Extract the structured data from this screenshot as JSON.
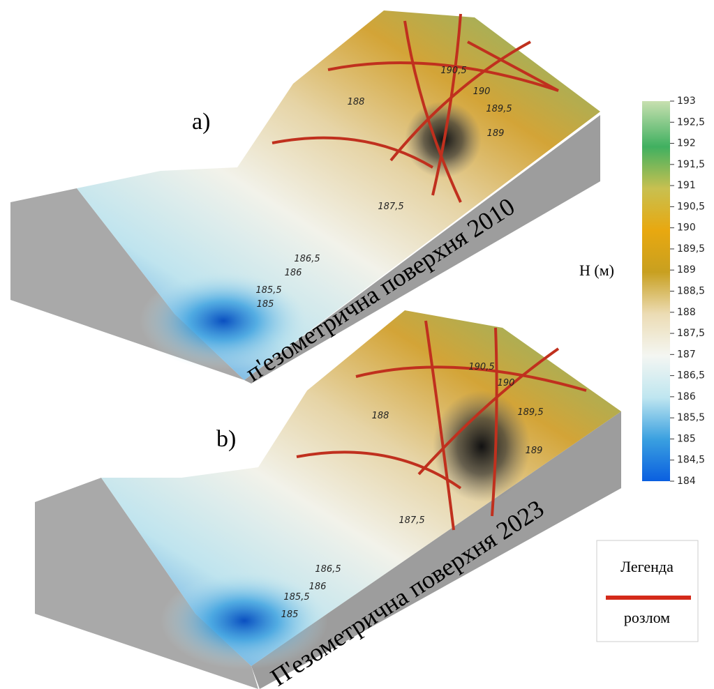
{
  "panels": [
    {
      "label": "a)",
      "caption": "п'езометрична поверхня 2010",
      "contours": [
        "190,5",
        "190",
        "189,5",
        "189",
        "188",
        "187,5",
        "186,5",
        "186",
        "185,5",
        "185"
      ]
    },
    {
      "label": "b)",
      "caption": "П'езометрична поверхня 2023",
      "contours": [
        "190,5",
        "190",
        "189,5",
        "189",
        "188",
        "187,5",
        "186,5",
        "186",
        "185,5",
        "185"
      ]
    }
  ],
  "colorbar": {
    "title": "H (м)",
    "range": [
      184,
      193
    ],
    "ticks": [
      193,
      {
        "value": 192.5,
        "label": "192,5"
      },
      192,
      {
        "value": 191.5,
        "label": "191,5"
      },
      191,
      {
        "value": 190.5,
        "label": "190,5"
      },
      190,
      {
        "value": 189.5,
        "label": "189,5"
      },
      189,
      {
        "value": 188.5,
        "label": "188,5"
      },
      188,
      {
        "value": 187.5,
        "label": "187,5"
      },
      187,
      {
        "value": 186.5,
        "label": "186,5"
      },
      186,
      {
        "value": 185.5,
        "label": "185,5"
      },
      185,
      {
        "value": 184.5,
        "label": "184,5"
      },
      184
    ]
  },
  "legend": {
    "title": "Легенда",
    "items": [
      {
        "label": "розлом",
        "color": "#d42a1a"
      }
    ]
  }
}
